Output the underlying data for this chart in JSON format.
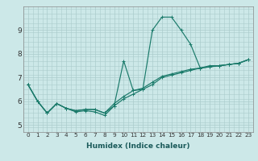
{
  "xlabel": "Humidex (Indice chaleur)",
  "ylabel": "",
  "background_color": "#cce8e8",
  "grid_color": "#aacccc",
  "line_color": "#1a7a6a",
  "xlim": [
    -0.5,
    23.5
  ],
  "ylim": [
    4.7,
    10.0
  ],
  "xtick_labels": [
    "0",
    "1",
    "2",
    "3",
    "4",
    "5",
    "6",
    "7",
    "8",
    "9",
    "10",
    "11",
    "12",
    "13",
    "14",
    "15",
    "16",
    "17",
    "18",
    "19",
    "20",
    "21",
    "22",
    "23"
  ],
  "ytick_values": [
    5,
    6,
    7,
    8,
    9
  ],
  "series": [
    {
      "x": [
        0,
        1,
        2,
        3,
        4,
        5,
        6,
        7,
        8,
        9,
        10,
        11,
        12,
        13,
        14,
        15,
        16,
        17,
        18,
        19,
        20,
        21,
        22,
        23
      ],
      "y": [
        6.7,
        6.0,
        5.5,
        5.9,
        5.7,
        5.55,
        5.6,
        5.55,
        5.4,
        5.8,
        7.7,
        6.45,
        6.5,
        9.0,
        9.55,
        9.55,
        9.0,
        8.4,
        7.4,
        7.5,
        7.5,
        7.55,
        7.6,
        7.75
      ]
    },
    {
      "x": [
        0,
        1,
        2,
        3,
        4,
        5,
        6,
        7,
        8,
        9,
        10,
        11,
        12,
        13,
        14,
        15,
        16,
        17,
        18,
        19,
        20,
        21,
        22,
        23
      ],
      "y": [
        6.7,
        6.0,
        5.5,
        5.9,
        5.7,
        5.6,
        5.65,
        5.65,
        5.5,
        5.8,
        6.1,
        6.3,
        6.5,
        6.7,
        7.0,
        7.1,
        7.2,
        7.3,
        7.4,
        7.45,
        7.5,
        7.55,
        7.6,
        7.75
      ]
    },
    {
      "x": [
        0,
        1,
        2,
        3,
        4,
        5,
        6,
        7,
        8,
        9,
        10,
        11,
        12,
        13,
        14,
        15,
        16,
        17,
        18,
        19,
        20,
        21,
        22,
        23
      ],
      "y": [
        6.7,
        6.0,
        5.5,
        5.9,
        5.7,
        5.6,
        5.65,
        5.65,
        5.5,
        5.9,
        6.2,
        6.45,
        6.55,
        6.8,
        7.05,
        7.15,
        7.25,
        7.35,
        7.4,
        7.45,
        7.5,
        7.55,
        7.6,
        7.75
      ]
    }
  ]
}
